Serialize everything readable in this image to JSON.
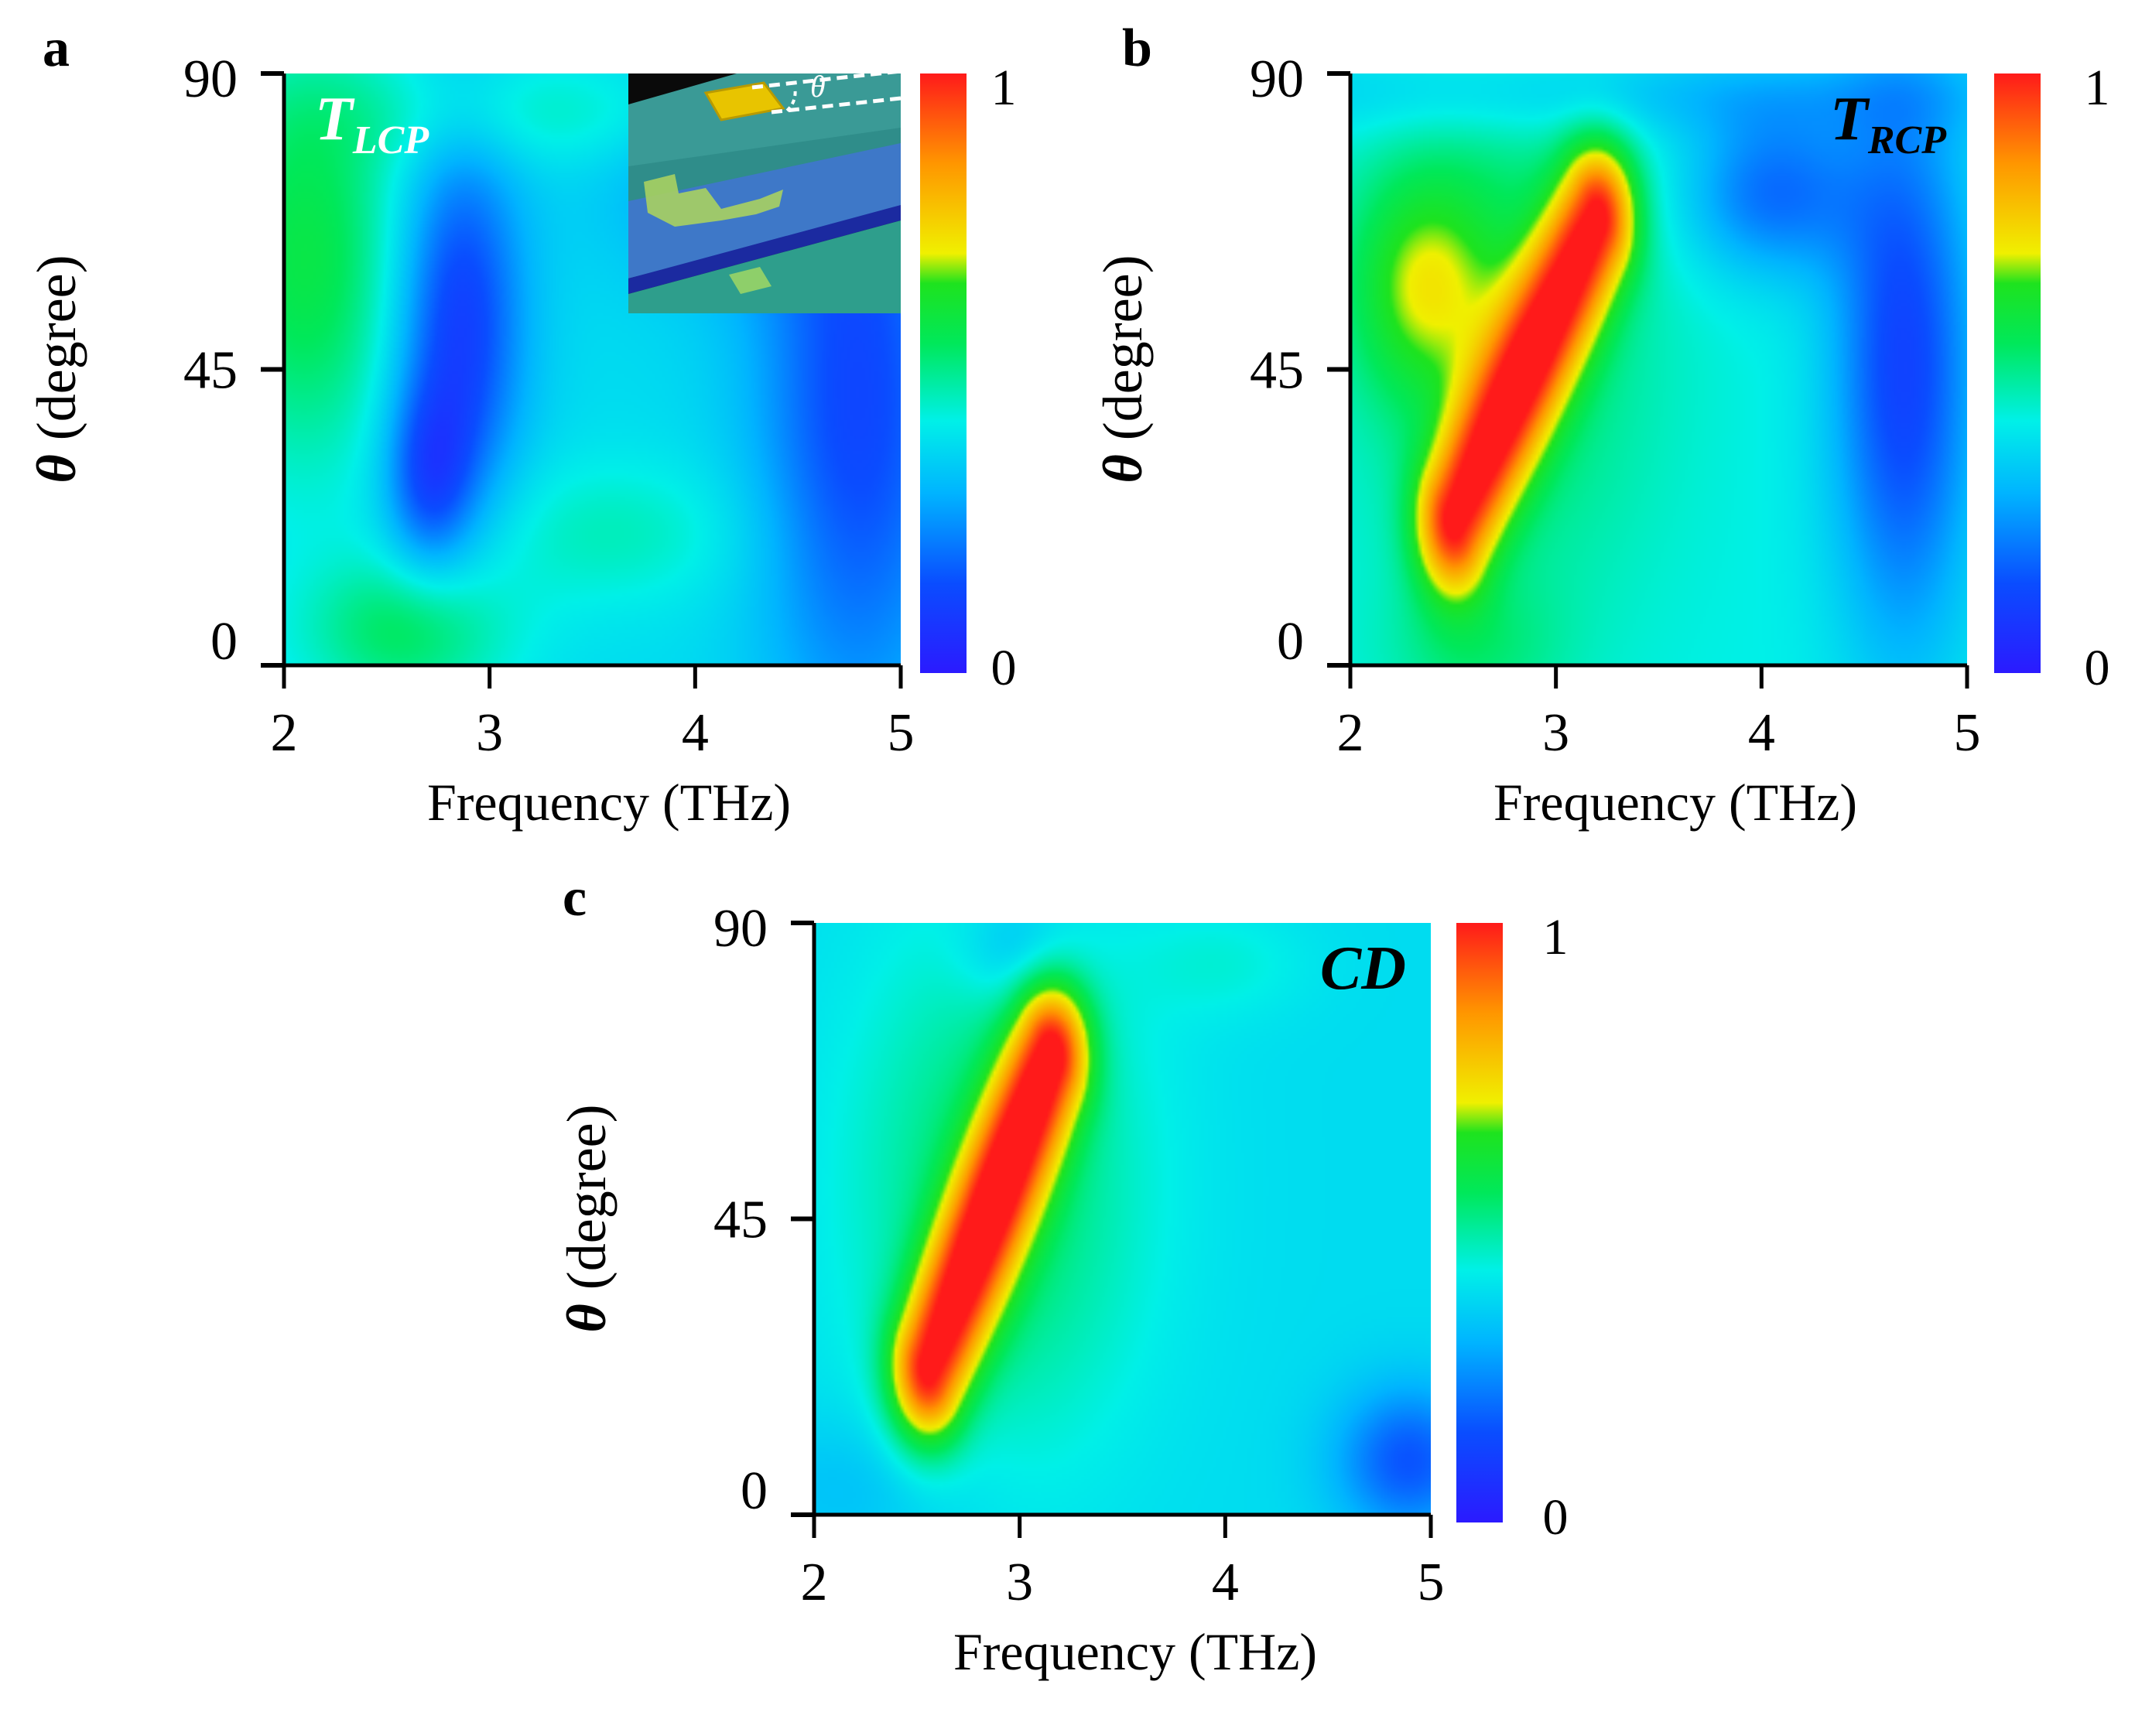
{
  "chart_data": [
    {
      "panel": "a",
      "type": "heatmap",
      "title": "TLCP",
      "title_main": "T",
      "title_sub": "LCP",
      "title_color": "#ffffff",
      "xlabel": "Frequency (THz)",
      "ylabel_symbol": "θ",
      "ylabel_rest": " (degree)",
      "xlim": [
        2,
        5
      ],
      "ylim": [
        0,
        90
      ],
      "xticks": [
        2,
        3,
        4,
        5
      ],
      "yticks": [
        0,
        45,
        90
      ],
      "xtick_labels": [
        "2",
        "3",
        "4",
        "5"
      ],
      "ytick_labels": [
        "0",
        "45",
        "90"
      ],
      "colorbar": {
        "min": 0,
        "max": 1,
        "min_label": "0",
        "max_label": "1",
        "colormap": "jet"
      },
      "background_value": 0.38,
      "blobs": [
        {
          "f": 2.1,
          "t": 62,
          "sf": 0.35,
          "st": 22,
          "v": 0.2
        },
        {
          "f": 2.6,
          "t": 5,
          "sf": 0.35,
          "st": 8,
          "v": 0.17
        },
        {
          "f": 2.85,
          "t": 52,
          "sf": 0.22,
          "st": 20,
          "v": -0.28
        },
        {
          "f": 2.7,
          "t": 28,
          "sf": 0.15,
          "st": 10,
          "v": -0.2
        },
        {
          "f": 4.8,
          "t": 40,
          "sf": 0.35,
          "st": 35,
          "v": -0.25
        },
        {
          "f": 4.2,
          "t": 75,
          "sf": 0.45,
          "st": 12,
          "v": -0.12
        },
        {
          "f": 3.3,
          "t": 84,
          "sf": 0.8,
          "st": 6,
          "v": 0.08
        },
        {
          "f": 3.6,
          "t": 20,
          "sf": 0.5,
          "st": 8,
          "v": 0.08
        }
      ],
      "inset": {
        "angle_label": "θ"
      }
    },
    {
      "panel": "b",
      "type": "heatmap",
      "title": "TRCP",
      "title_main": "T",
      "title_sub": "RCP",
      "title_color": "#000000",
      "xlabel": "Frequency (THz)",
      "ylabel_symbol": "θ",
      "ylabel_rest": " (degree)",
      "xlim": [
        2,
        5
      ],
      "ylim": [
        0,
        90
      ],
      "xticks": [
        2,
        3,
        4,
        5
      ],
      "yticks": [
        0,
        45,
        90
      ],
      "xtick_labels": [
        "2",
        "3",
        "4",
        "5"
      ],
      "ytick_labels": [
        "0",
        "45",
        "90"
      ],
      "colorbar": {
        "min": 0,
        "max": 1,
        "min_label": "0",
        "max_label": "1",
        "colormap": "jet"
      },
      "background_value": 0.42,
      "ridge": {
        "f0": 2.5,
        "t0": 22,
        "f1": 3.2,
        "t1": 68,
        "width": 0.13,
        "v": 0.55
      },
      "blobs": [
        {
          "f": 2.35,
          "t": 58,
          "sf": 0.25,
          "st": 12,
          "v": 0.22
        },
        {
          "f": 2.8,
          "t": 50,
          "sf": 0.5,
          "st": 30,
          "v": 0.12
        },
        {
          "f": 4.7,
          "t": 45,
          "sf": 0.25,
          "st": 30,
          "v": -0.3
        },
        {
          "f": 4.05,
          "t": 72,
          "sf": 0.3,
          "st": 9,
          "v": -0.22
        },
        {
          "f": 3.5,
          "t": 87,
          "sf": 1.5,
          "st": 5,
          "v": -0.1
        },
        {
          "f": 2.6,
          "t": 2,
          "sf": 0.3,
          "st": 8,
          "v": 0.08
        }
      ]
    },
    {
      "panel": "c",
      "type": "heatmap",
      "title": "CD",
      "title_main": "CD",
      "title_sub": "",
      "title_color": "#000000",
      "xlabel": "Frequency (THz)",
      "ylabel_symbol": "θ",
      "ylabel_rest": " (degree)",
      "xlim": [
        2,
        5
      ],
      "ylim": [
        0,
        90
      ],
      "xticks": [
        2,
        3,
        4,
        5
      ],
      "yticks": [
        0,
        45,
        90
      ],
      "xtick_labels": [
        "2",
        "3",
        "4",
        "5"
      ],
      "ytick_labels": [
        "0",
        "45",
        "90"
      ],
      "colorbar": {
        "min": 0,
        "max": 1,
        "min_label": "0",
        "max_label": "1",
        "colormap": "jet"
      },
      "background_value": 0.38,
      "ridge": {
        "f0": 2.55,
        "t0": 22,
        "f1": 3.15,
        "t1": 70,
        "width": 0.13,
        "v": 0.58
      },
      "blobs": [
        {
          "f": 2.9,
          "t": 50,
          "sf": 0.5,
          "st": 28,
          "v": 0.16
        },
        {
          "f": 4.9,
          "t": 8,
          "sf": 0.25,
          "st": 8,
          "v": -0.22
        },
        {
          "f": 3.0,
          "t": 86,
          "sf": 0.2,
          "st": 6,
          "v": -0.1
        },
        {
          "f": 2.2,
          "t": 4,
          "sf": 0.4,
          "st": 8,
          "v": -0.06
        },
        {
          "f": 4.0,
          "t": 84,
          "sf": 0.3,
          "st": 6,
          "v": 0.05
        }
      ]
    }
  ]
}
